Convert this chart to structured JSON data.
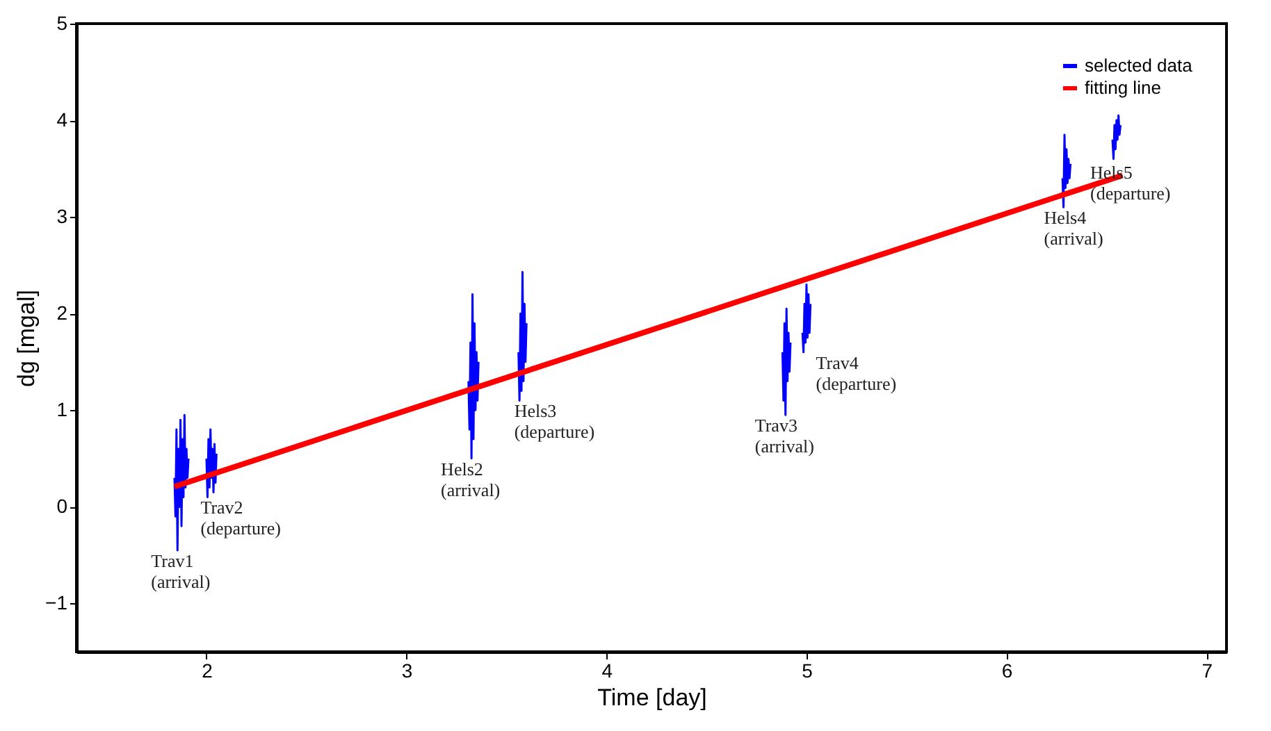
{
  "chart_data": {
    "type": "line",
    "xlabel": "Time [day]",
    "ylabel": "dg [mgal]",
    "xlim": [
      1.35,
      7.1
    ],
    "ylim": [
      -1.5,
      5
    ],
    "xticks": [
      2,
      3,
      4,
      5,
      6,
      7
    ],
    "yticks": [
      -1,
      0,
      1,
      2,
      3,
      4,
      5
    ],
    "grid": false,
    "legend": "top right",
    "series": [
      {
        "name": "selected data",
        "color": "#0000ff",
        "x": [
          1.84,
          1.845,
          1.85,
          1.855,
          1.86,
          1.865,
          1.87,
          1.875,
          1.88,
          1.885,
          1.89,
          1.895,
          1.9,
          1.905,
          1.91,
          1.95,
          2.0,
          2.005,
          2.01,
          2.015,
          2.02,
          2.025,
          2.03,
          2.035,
          2.04,
          2.045,
          2.05,
          2.7,
          3.31,
          3.315,
          3.32,
          3.325,
          3.33,
          3.335,
          3.34,
          3.345,
          3.35,
          3.355,
          3.36,
          3.45,
          3.56,
          3.565,
          3.57,
          3.575,
          3.58,
          3.585,
          3.59,
          3.595,
          3.6,
          4.2,
          4.88,
          4.885,
          4.89,
          4.895,
          4.9,
          4.905,
          4.91,
          4.915,
          4.92,
          4.95,
          4.98,
          4.985,
          4.99,
          4.995,
          5.0,
          5.005,
          5.01,
          5.015,
          5.02,
          5.6,
          6.28,
          6.285,
          6.29,
          6.295,
          6.3,
          6.305,
          6.31,
          6.315,
          6.32,
          6.45,
          6.53,
          6.535,
          6.54,
          6.545,
          6.55,
          6.555,
          6.56,
          6.565,
          6.57
        ],
        "values": [
          0.3,
          -0.1,
          0.8,
          -0.45,
          0.6,
          0.0,
          0.9,
          -0.2,
          0.7,
          0.1,
          0.95,
          0.2,
          0.6,
          0.3,
          0.5,
          null,
          0.5,
          0.1,
          0.7,
          0.2,
          0.8,
          0.3,
          0.6,
          0.15,
          0.65,
          0.25,
          0.55,
          null,
          1.3,
          0.8,
          1.7,
          0.5,
          2.2,
          0.7,
          1.9,
          1.0,
          1.6,
          1.1,
          1.5,
          null,
          1.6,
          1.1,
          2.0,
          1.2,
          2.43,
          1.3,
          2.1,
          1.5,
          1.9,
          null,
          1.6,
          1.1,
          1.9,
          0.95,
          2.05,
          1.3,
          1.8,
          1.4,
          1.7,
          null,
          1.8,
          1.6,
          2.1,
          1.7,
          2.3,
          1.75,
          2.2,
          1.8,
          2.1,
          null,
          3.4,
          3.1,
          3.85,
          3.3,
          3.7,
          3.35,
          3.6,
          3.4,
          3.55,
          null,
          3.8,
          3.6,
          3.95,
          3.7,
          4.0,
          3.8,
          4.05,
          3.85,
          3.95
        ]
      },
      {
        "name": "fitting line",
        "color": "#ff0000",
        "x": [
          1.84,
          6.58
        ],
        "values": [
          0.21,
          3.43
        ]
      }
    ],
    "annotations": [
      {
        "text": "Trav1\n(arrival)",
        "x": 1.855,
        "y": -0.45
      },
      {
        "text": "Trav2\n(departure)",
        "x": 2.005,
        "y": 0.1
      },
      {
        "text": "Hels2\n(arrival)",
        "x": 3.325,
        "y": 0.5
      },
      {
        "text": "Hels3\n(departure)",
        "x": 3.56,
        "y": 1.1
      },
      {
        "text": "Trav3\n(arrival)",
        "x": 4.895,
        "y": 0.95
      },
      {
        "text": "Trav4\n(departure)",
        "x": 4.985,
        "y": 1.6
      },
      {
        "text": "Hels4\n(arrival)",
        "x": 6.285,
        "y": 3.1
      },
      {
        "text": "Hels5\n(departure)",
        "x": 6.53,
        "y": 3.6
      }
    ]
  }
}
